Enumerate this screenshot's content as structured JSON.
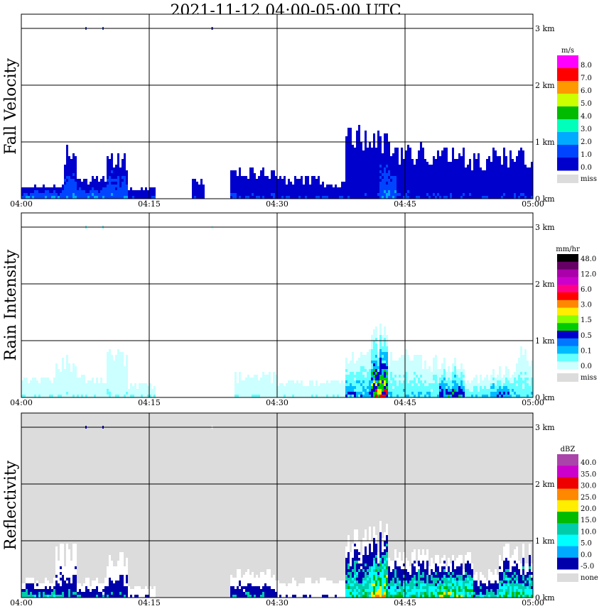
{
  "title": "2021-11-12   04:00-05:00 UTC",
  "x_ticks": [
    "04:00",
    "04:15",
    "04:30",
    "04:45",
    "05:00"
  ],
  "y_ticks": [
    "0 km",
    "1 km",
    "2 km",
    "3 km"
  ],
  "colors": {
    "frame": "#000000",
    "missing_bg": "#dcdcdc",
    "panel_bg": "#ffffff"
  },
  "panels": [
    {
      "id": "fall-velocity",
      "label": "Fall Velocity",
      "unit": "m/s",
      "background": "white",
      "legend": [
        {
          "label": "8.0",
          "color": "#ff00ff"
        },
        {
          "label": "7.0",
          "color": "#ff0000"
        },
        {
          "label": "6.0",
          "color": "#ff9900"
        },
        {
          "label": "5.0",
          "color": "#ccff00"
        },
        {
          "label": "4.0",
          "color": "#00bb00"
        },
        {
          "label": "3.0",
          "color": "#00ffbb"
        },
        {
          "label": "2.0",
          "color": "#00aaff"
        },
        {
          "label": "1.0",
          "color": "#0044ff"
        },
        {
          "label": "0.0",
          "color": "#0000cc"
        }
      ],
      "legend_extra": "miss"
    },
    {
      "id": "rain-intensity",
      "label": "Rain Intensity",
      "unit": "mm/hr",
      "background": "white",
      "legend": [
        {
          "label": "48.0",
          "color": "#000000"
        },
        {
          "label": "",
          "color": "#660066"
        },
        {
          "label": "12.0",
          "color": "#aa00aa"
        },
        {
          "label": "",
          "color": "#cc00cc"
        },
        {
          "label": "6.0",
          "color": "#ff0088"
        },
        {
          "label": "",
          "color": "#ff0000"
        },
        {
          "label": "3.0",
          "color": "#ff8800"
        },
        {
          "label": "",
          "color": "#ffee00"
        },
        {
          "label": "1.5",
          "color": "#88ff00"
        },
        {
          "label": "",
          "color": "#00cc00"
        },
        {
          "label": "0.5",
          "color": "#0000cc"
        },
        {
          "label": "",
          "color": "#0077ff"
        },
        {
          "label": "0.1",
          "color": "#00bbff"
        },
        {
          "label": "",
          "color": "#66ffff"
        },
        {
          "label": "0.0",
          "color": "#ccffff"
        }
      ],
      "legend_extra": "miss"
    },
    {
      "id": "reflectivity",
      "label": "Reflectivity",
      "unit": "dBZ",
      "background": "gray",
      "legend": [
        {
          "label": "40.0",
          "color": "#aa44aa"
        },
        {
          "label": "35.0",
          "color": "#cc00cc"
        },
        {
          "label": "30.0",
          "color": "#ee0000"
        },
        {
          "label": "25.0",
          "color": "#ff8800"
        },
        {
          "label": "20.0",
          "color": "#ffee00"
        },
        {
          "label": "15.0",
          "color": "#00bb00"
        },
        {
          "label": "10.0",
          "color": "#00ccaa"
        },
        {
          "label": "5.0",
          "color": "#00ffff"
        },
        {
          "label": "0.0",
          "color": "#00aaff"
        },
        {
          "label": "-5.0",
          "color": "#0000aa"
        }
      ],
      "legend_extra": "none"
    }
  ],
  "chart_data": {
    "type": "heatmap",
    "title": "2021-11-12   04:00-05:00 UTC",
    "x": {
      "unit": "UTC time",
      "range": [
        "04:00",
        "05:00"
      ],
      "ticks": [
        "04:00",
        "04:15",
        "04:30",
        "04:45",
        "05:00"
      ]
    },
    "y": {
      "unit": "km",
      "range": [
        0,
        3
      ],
      "ticks": [
        0,
        1,
        2,
        3
      ]
    },
    "grid": true,
    "legend_placement": "right",
    "series": [
      {
        "name": "Fall Velocity",
        "unit": "m/s",
        "bands_minutes": [
          [
            0,
            5,
            0.25,
            2
          ],
          [
            5,
            6.5,
            1.0,
            2
          ],
          [
            6.5,
            10,
            0.4,
            2
          ],
          [
            10,
            12.5,
            0.9,
            2
          ],
          [
            12.5,
            15.5,
            0.2,
            1
          ],
          [
            20,
            21.5,
            0.35,
            1
          ],
          [
            24.5,
            30,
            0.55,
            1
          ],
          [
            30,
            35,
            0.4,
            1
          ],
          [
            35,
            38,
            0.3,
            1
          ],
          [
            38,
            42,
            1.4,
            1
          ],
          [
            42,
            44,
            1.3,
            2
          ],
          [
            44,
            47,
            1.0,
            1
          ],
          [
            47,
            52,
            0.9,
            1
          ],
          [
            52,
            55,
            0.8,
            1
          ],
          [
            55,
            60,
            0.9,
            1
          ]
        ]
      },
      {
        "name": "Rain Intensity",
        "unit": "mm/hr",
        "bands_minutes": [
          [
            0,
            4,
            0.35,
            1
          ],
          [
            4,
            6.5,
            0.75,
            1
          ],
          [
            6.5,
            10,
            0.4,
            1
          ],
          [
            10,
            12.5,
            0.85,
            1
          ],
          [
            12.5,
            15.5,
            0.25,
            1
          ],
          [
            25,
            30,
            0.45,
            1
          ],
          [
            30,
            38,
            0.3,
            1
          ],
          [
            38,
            41,
            0.9,
            3
          ],
          [
            41,
            43,
            1.35,
            6
          ],
          [
            43,
            47,
            0.9,
            2
          ],
          [
            47,
            49,
            0.8,
            2
          ],
          [
            49,
            52,
            0.75,
            4
          ],
          [
            52,
            55,
            0.4,
            2
          ],
          [
            55,
            58,
            0.55,
            3
          ],
          [
            58,
            60,
            0.9,
            2
          ]
        ]
      },
      {
        "name": "Reflectivity",
        "unit": "dBZ",
        "bands_minutes": [
          [
            0,
            4,
            0.35,
            3
          ],
          [
            4,
            6.5,
            0.95,
            2
          ],
          [
            6.5,
            10,
            0.35,
            2
          ],
          [
            10,
            12.5,
            0.9,
            2
          ],
          [
            12.5,
            15.5,
            0.2,
            1
          ],
          [
            24.5,
            30,
            0.5,
            2
          ],
          [
            30,
            38,
            0.35,
            1
          ],
          [
            38,
            41,
            1.25,
            4
          ],
          [
            41,
            43,
            1.35,
            6
          ],
          [
            43,
            47,
            0.95,
            4
          ],
          [
            47,
            49,
            0.9,
            4
          ],
          [
            49,
            53,
            0.8,
            5
          ],
          [
            53,
            56,
            0.5,
            3
          ],
          [
            56,
            60,
            0.95,
            4
          ]
        ]
      }
    ]
  }
}
